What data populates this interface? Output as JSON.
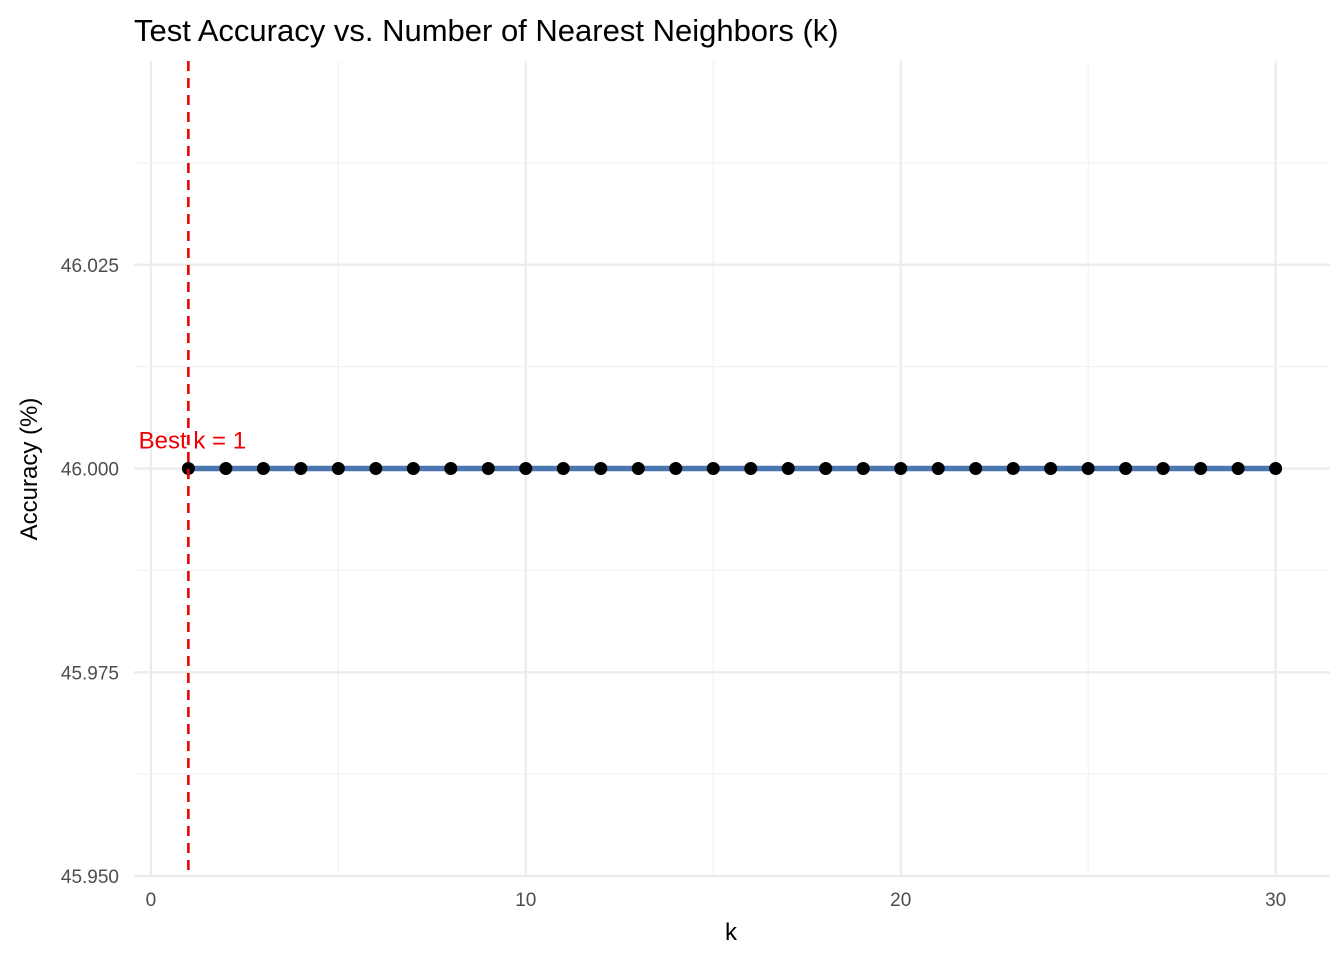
{
  "chart_data": {
    "type": "line",
    "title": "Test Accuracy vs. Number of Nearest Neighbors (k)",
    "xlabel": "k",
    "ylabel": "Accuracy (%)",
    "xlim": [
      -0.45,
      31.45
    ],
    "ylim": [
      45.95,
      46.05
    ],
    "x_ticks": [
      0,
      10,
      20,
      30
    ],
    "x_tick_labels": [
      "0",
      "10",
      "20",
      "30"
    ],
    "y_ticks": [
      45.95,
      45.975,
      46.0,
      46.025
    ],
    "y_tick_labels": [
      "45.950",
      "45.975",
      "46.000",
      "46.025"
    ],
    "grid": true,
    "series": [
      {
        "x": [
          1,
          2,
          3,
          4,
          5,
          6,
          7,
          8,
          9,
          10,
          11,
          12,
          13,
          14,
          15,
          16,
          17,
          18,
          19,
          20,
          21,
          22,
          23,
          24,
          25,
          26,
          27,
          28,
          29,
          30
        ],
        "values": [
          46,
          46,
          46,
          46,
          46,
          46,
          46,
          46,
          46,
          46,
          46,
          46,
          46,
          46,
          46,
          46,
          46,
          46,
          46,
          46,
          46,
          46,
          46,
          46,
          46,
          46,
          46,
          46,
          46,
          46
        ],
        "line_color": "#4b77b0",
        "point_color": "#000000"
      }
    ],
    "reference_line": {
      "orientation": "vertical",
      "x": 1,
      "style": "dashed",
      "color": "#ee0000"
    },
    "annotation": {
      "text": "Best k = 1",
      "x": 1,
      "y": 46.0,
      "color": "#ee0000"
    }
  }
}
